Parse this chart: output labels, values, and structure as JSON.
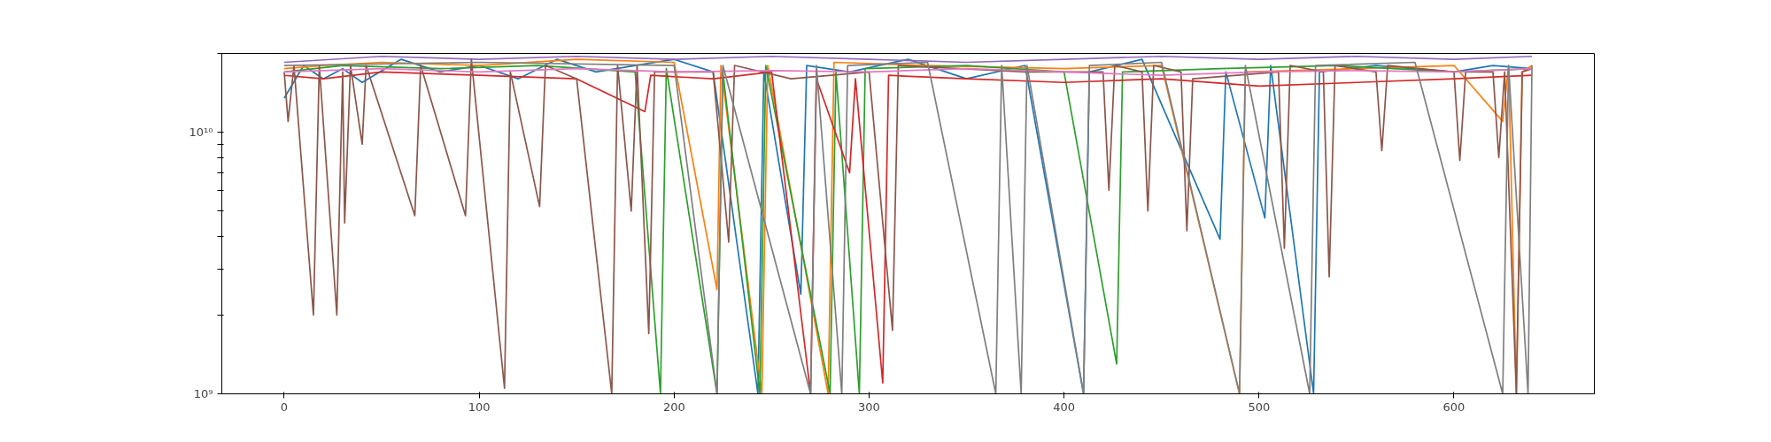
{
  "chart_data": {
    "type": "line",
    "log": "y",
    "xlim": [
      -32,
      672
    ],
    "ylim": [
      1000000000.0,
      20000000000.0
    ],
    "xticks": [
      0,
      100,
      200,
      300,
      400,
      500,
      600
    ],
    "yticks": [
      {
        "value": 1000000000.0,
        "label": "10⁹"
      },
      {
        "value": 2000000000.0,
        "label": null
      },
      {
        "value": 3000000000.0,
        "label": null
      },
      {
        "value": 4000000000.0,
        "label": null
      },
      {
        "value": 5000000000.0,
        "label": null
      },
      {
        "value": 6000000000.0,
        "label": null
      },
      {
        "value": 7000000000.0,
        "label": null
      },
      {
        "value": 8000000000.0,
        "label": null
      },
      {
        "value": 9000000000.0,
        "label": null
      },
      {
        "value": 10000000000.0,
        "label": "10¹⁰"
      },
      {
        "value": 20000000000.0,
        "label": null
      }
    ],
    "grid": false,
    "series": [
      {
        "color": "#1f77b4",
        "x": [
          0,
          10,
          20,
          30,
          40,
          60,
          80,
          100,
          120,
          140,
          160,
          180,
          200,
          220,
          243,
          246,
          265,
          268,
          290,
          320,
          350,
          380,
          410,
          413,
          440,
          480,
          483,
          503,
          506,
          528,
          531,
          560,
          600,
          620,
          640
        ],
        "values": [
          13500000000.0,
          18000000000.0,
          16000000000.0,
          17500000000.0,
          15500000000.0,
          19000000000.0,
          17000000000.0,
          18000000000.0,
          16000000000.0,
          19000000000.0,
          17000000000.0,
          18000000000.0,
          19000000000.0,
          17000000000.0,
          1000000000.0,
          17000000000.0,
          2400000000.0,
          18000000000.0,
          17000000000.0,
          19000000000.0,
          16000000000.0,
          18000000000.0,
          1000000000.0,
          17000000000.0,
          19000000000.0,
          3900000000.0,
          17000000000.0,
          4700000000.0,
          18000000000.0,
          1000000000.0,
          17000000000.0,
          18000000000.0,
          17000000000.0,
          18000000000.0,
          17500000000.0
        ]
      },
      {
        "color": "#ff7f0e",
        "x": [
          0,
          20,
          50,
          100,
          150,
          200,
          222,
          224,
          245,
          248,
          279,
          282,
          330,
          400,
          450,
          490,
          493,
          550,
          600,
          625,
          628,
          632,
          635,
          640
        ],
        "values": [
          17500000000.0,
          18000000000.0,
          18500000000.0,
          18000000000.0,
          19000000000.0,
          18500000000.0,
          2500000000.0,
          18000000000.0,
          1000000000.0,
          18000000000.0,
          1000000000.0,
          18500000000.0,
          18000000000.0,
          17500000000.0,
          18000000000.0,
          1000000000.0,
          17000000000.0,
          17500000000.0,
          18000000000.0,
          11000000000.0,
          18000000000.0,
          1000000000.0,
          17000000000.0,
          18000000000.0
        ]
      },
      {
        "color": "#2ca02c",
        "x": [
          0,
          30,
          80,
          130,
          180,
          193,
          196,
          222,
          225,
          244,
          247,
          280,
          283,
          295,
          298,
          350,
          400,
          427,
          430,
          480,
          540,
          600,
          640
        ],
        "values": [
          17000000000.0,
          18000000000.0,
          17500000000.0,
          18000000000.0,
          17000000000.0,
          1000000000.0,
          17500000000.0,
          1000000000.0,
          17000000000.0,
          1000000000.0,
          18000000000.0,
          1000000000.0,
          17000000000.0,
          1000000000.0,
          17500000000.0,
          18000000000.0,
          17000000000.0,
          1300000000.0,
          17000000000.0,
          17500000000.0,
          18000000000.0,
          17000000000.0,
          17500000000.0
        ]
      },
      {
        "color": "#d62728",
        "x": [
          0,
          20,
          50,
          100,
          150,
          185,
          188,
          220,
          250,
          270,
          273,
          290,
          293,
          307,
          310,
          350,
          400,
          450,
          500,
          550,
          600,
          640
        ],
        "values": [
          16500000000.0,
          16000000000.0,
          17000000000.0,
          16500000000.0,
          16000000000.0,
          12000000000.0,
          16500000000.0,
          16000000000.0,
          17000000000.0,
          1000000000.0,
          16000000000.0,
          7000000000.0,
          16000000000.0,
          1100000000.0,
          16500000000.0,
          16000000000.0,
          15500000000.0,
          16000000000.0,
          15000000000.0,
          15500000000.0,
          16000000000.0,
          16500000000.0
        ]
      },
      {
        "color": "#9467bd",
        "x": [
          0,
          50,
          100,
          150,
          200,
          250,
          300,
          350,
          400,
          450,
          500,
          550,
          600,
          640
        ],
        "values": [
          18500000000.0,
          19500000000.0,
          19000000000.0,
          19500000000.0,
          19000000000.0,
          19500000000.0,
          19000000000.0,
          18500000000.0,
          19000000000.0,
          19500000000.0,
          19000000000.0,
          19500000000.0,
          19000000000.0,
          19500000000.0
        ]
      },
      {
        "color": "#8c564b",
        "x": [
          0,
          2,
          5,
          15,
          18,
          27,
          30,
          31,
          34,
          40,
          42,
          67,
          70,
          93,
          96,
          113,
          116,
          131,
          134,
          150,
          168,
          171,
          178,
          181,
          187,
          190,
          220,
          228,
          231,
          260,
          300,
          312,
          315,
          380,
          420,
          423,
          426,
          440,
          443,
          446,
          460,
          463,
          466,
          510,
          513,
          516,
          533,
          536,
          539,
          560,
          563,
          566,
          600,
          603,
          606,
          620,
          623,
          626,
          632,
          635,
          640
        ],
        "values": [
          17000000000.0,
          11000000000.0,
          18000000000.0,
          2000000000.0,
          18000000000.0,
          2000000000.0,
          17000000000.0,
          4500000000.0,
          18000000000.0,
          9000000000.0,
          18000000000.0,
          4800000000.0,
          18000000000.0,
          4800000000.0,
          19000000000.0,
          1050000000.0,
          17000000000.0,
          5200000000.0,
          18000000000.0,
          16000000000.0,
          1000000000.0,
          18000000000.0,
          5000000000.0,
          18000000000.0,
          1700000000.0,
          17000000000.0,
          17000000000.0,
          3800000000.0,
          18000000000.0,
          16000000000.0,
          17000000000.0,
          1750000000.0,
          18000000000.0,
          17000000000.0,
          17000000000.0,
          6000000000.0,
          18000000000.0,
          17000000000.0,
          5000000000.0,
          18000000000.0,
          17000000000.0,
          4200000000.0,
          16000000000.0,
          17000000000.0,
          3600000000.0,
          18000000000.0,
          17000000000.0,
          2800000000.0,
          18000000000.0,
          17000000000.0,
          8500000000.0,
          18000000000.0,
          17000000000.0,
          7800000000.0,
          17000000000.0,
          17000000000.0,
          8000000000.0,
          17000000000.0,
          1000000000.0,
          17000000000.0,
          17500000000.0
        ]
      },
      {
        "color": "#e377c2",
        "x": [
          0,
          50,
          100,
          150,
          200,
          250,
          300,
          350,
          400,
          450,
          500,
          550,
          600,
          640
        ],
        "values": [
          17000000000.0,
          17500000000.0,
          17000000000.0,
          17500000000.0,
          17000000000.0,
          17200000000.0,
          17000000000.0,
          17500000000.0,
          17000000000.0,
          16500000000.0,
          17000000000.0,
          17200000000.0,
          17000000000.0,
          17500000000.0
        ]
      },
      {
        "color": "#7f7f7f",
        "x": [
          0,
          100,
          200,
          222,
          225,
          270,
          273,
          286,
          289,
          330,
          365,
          368,
          378,
          381,
          410,
          413,
          450,
          490,
          493,
          526,
          529,
          580,
          625,
          628,
          638,
          640
        ],
        "values": [
          18000000000.0,
          18500000000.0,
          18000000000.0,
          1000000000.0,
          18000000000.0,
          1000000000.0,
          18000000000.0,
          1000000000.0,
          18000000000.0,
          18500000000.0,
          1000000000.0,
          18000000000.0,
          1000000000.0,
          18000000000.0,
          1000000000.0,
          18000000000.0,
          18500000000.0,
          1000000000.0,
          18000000000.0,
          1000000000.0,
          18000000000.0,
          18500000000.0,
          1000000000.0,
          18000000000.0,
          1000000000.0,
          18000000000.0
        ]
      }
    ]
  }
}
